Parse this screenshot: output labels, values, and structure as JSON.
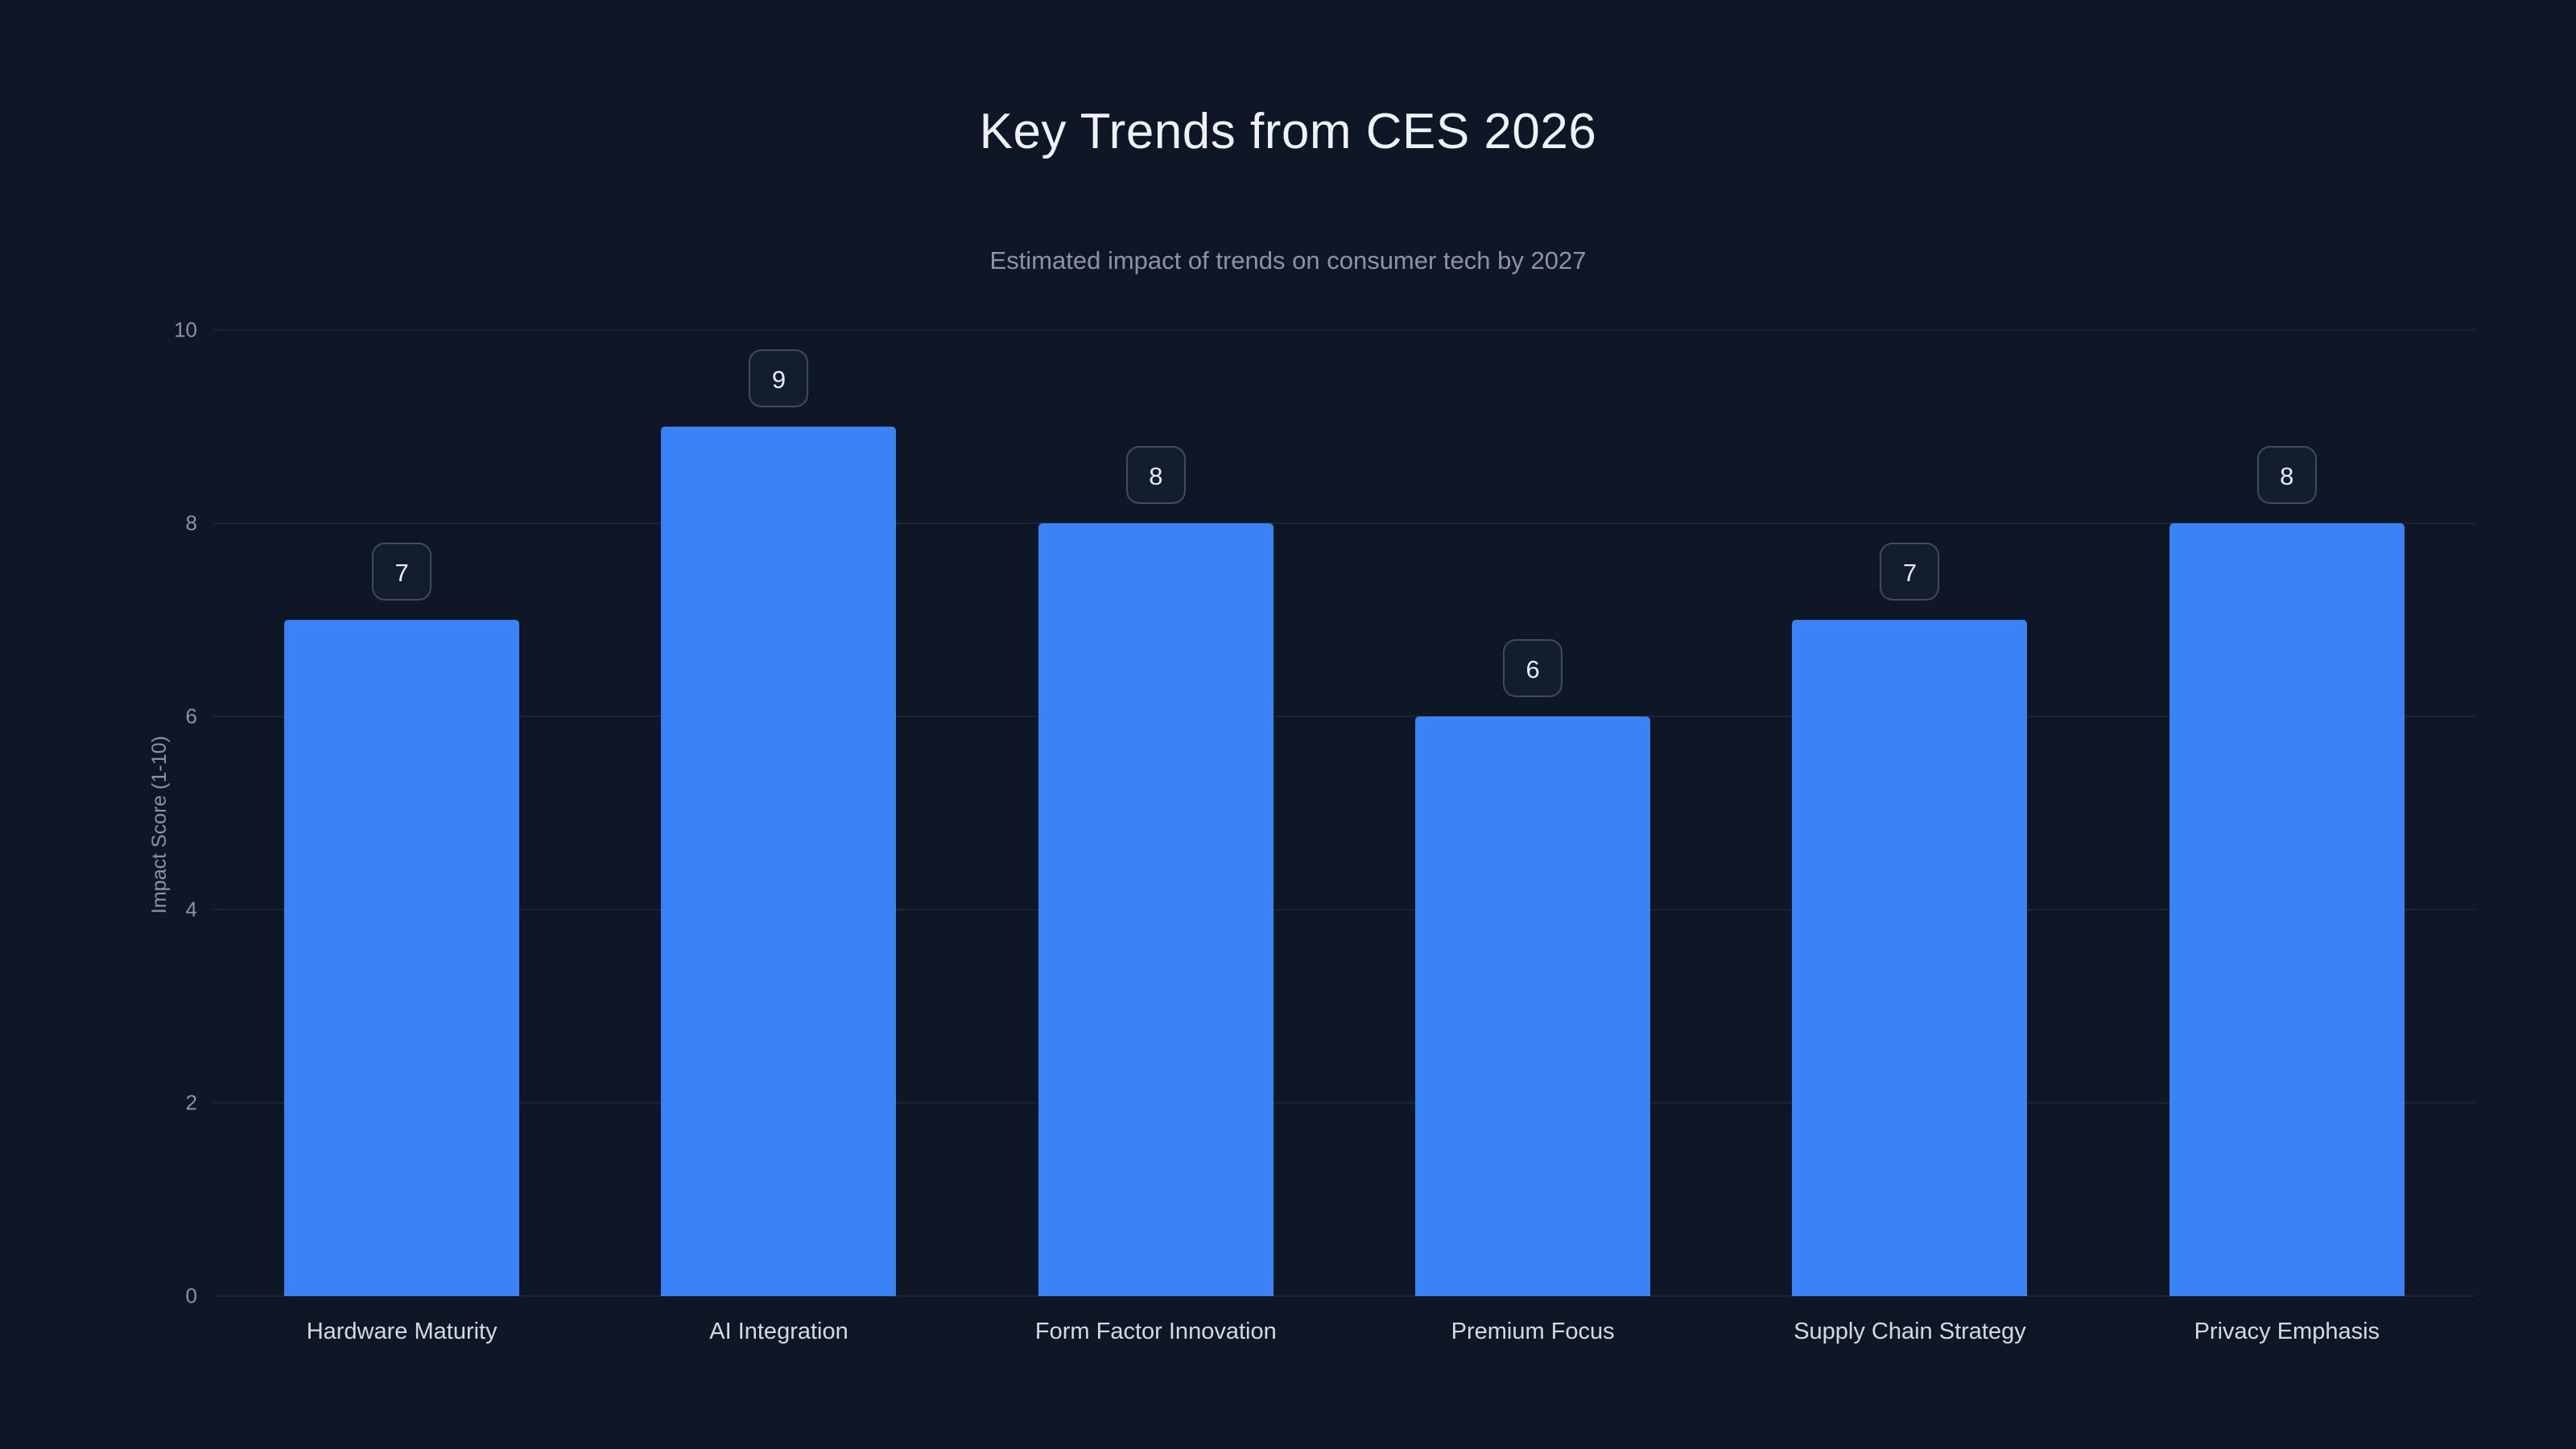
{
  "page": {
    "background_color": "#0f1726"
  },
  "chart_data": {
    "type": "bar",
    "title": "Key Trends from CES 2026",
    "subtitle": "Estimated impact of trends on consumer tech by 2027",
    "categories": [
      "Hardware Maturity",
      "AI Integration",
      "Form Factor Innovation",
      "Premium Focus",
      "Supply Chain Strategy",
      "Privacy Emphasis"
    ],
    "values": [
      7,
      9,
      8,
      6,
      7,
      8
    ],
    "xlabel": "",
    "ylabel": "Impact Score (1-10)",
    "ylim": [
      0,
      10
    ],
    "yticks": [
      0,
      2,
      4,
      6,
      8,
      10
    ],
    "bar_color": "#3b82f6",
    "grid": true,
    "legend": "none",
    "value_labels": "badges above bars"
  }
}
